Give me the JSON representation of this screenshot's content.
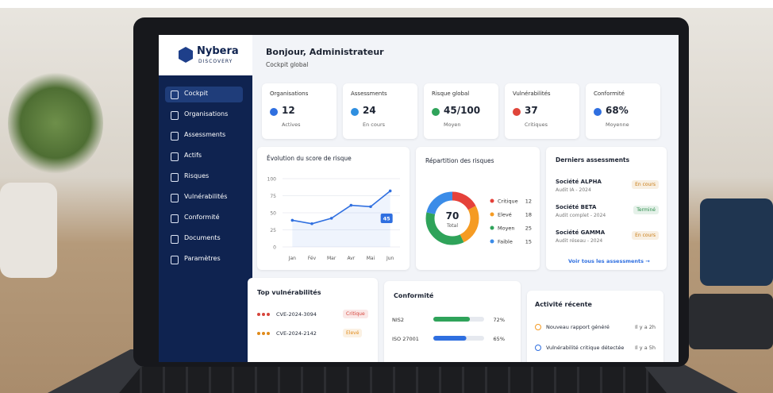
{
  "brand": {
    "name": "Nybera",
    "tagline": "DISCOVERY"
  },
  "nav": [
    "Cockpit",
    "Organisations",
    "Assessments",
    "Actifs",
    "Risques",
    "Vulnérabilités",
    "Conformité",
    "Documents",
    "Paramètres"
  ],
  "header": {
    "title": "Bonjour, Administrateur",
    "subtitle": "Cockpit global"
  },
  "kpis": [
    {
      "label": "Organisations",
      "value": 12,
      "note": "Actives",
      "color": "#2f6fe0"
    },
    {
      "label": "Assessments",
      "value": 24,
      "note": "En cours",
      "color": "#2f8fe0"
    },
    {
      "label": "Risque global",
      "value": "45/100",
      "note": "Moyen",
      "color": "#2fa35a"
    },
    {
      "label": "Vulnérabilités",
      "value": 37,
      "note": "Critiques",
      "color": "#e0453a"
    },
    {
      "label": "Conformité",
      "value": "68%",
      "note": "Moyenne",
      "color": "#2f6fe0"
    }
  ],
  "risk_trend": {
    "type": "line",
    "title": "Évolution du score de risque",
    "categories": [
      "Jan",
      "Fév",
      "Mar",
      "Avr",
      "Mai",
      "Jun"
    ],
    "values": [
      39,
      34,
      42,
      61,
      59,
      82
    ],
    "color": "#2f6fe0",
    "ylim": [
      0,
      100
    ],
    "yticks": [
      0,
      25,
      50,
      75,
      100
    ],
    "grid": true,
    "badge": 45
  },
  "risk_split": {
    "type": "donut",
    "title": "Répartition des risques",
    "total": 70,
    "total_label": "Total",
    "categories": [
      "Critique",
      "Elevé",
      "Moyen",
      "Faible"
    ],
    "values": [
      12,
      18,
      25,
      15
    ],
    "colors": [
      "#e5413a",
      "#f59b23",
      "#2fa35a",
      "#3b8ce8"
    ]
  },
  "assessments": {
    "title": "Derniers assessments",
    "items": [
      {
        "name": "Société ALPHA",
        "detail": "Audit IA - 2024",
        "status": "En cours",
        "color": "#c77a12"
      },
      {
        "name": "Société BETA",
        "detail": "Audit complet - 2024",
        "status": "Terminé",
        "color": "#2a8c4a"
      },
      {
        "name": "Société GAMMA",
        "detail": "Audit réseau - 2024",
        "status": "En cours",
        "color": "#c77a12"
      }
    ],
    "link": "Voir tous les assessments →"
  },
  "top_vulns": {
    "title": "Top vulnérabilités",
    "items": [
      {
        "id": "CVE-2024-3094",
        "severity": "Critique",
        "color": "#d6453b"
      },
      {
        "id": "CVE-2024-2142",
        "severity": "Elevé",
        "color": "#e08a1a"
      }
    ]
  },
  "compliance": {
    "title": "Conformité",
    "xlim": [
      0,
      100
    ],
    "items": [
      {
        "name": "NIS2",
        "value": 72,
        "value_label": "72%",
        "color": "#2fa35a"
      },
      {
        "name": "ISO 27001",
        "value": 65,
        "value_label": "65%",
        "color": "#2f6fe0"
      }
    ]
  },
  "activity": {
    "title": "Activité récente",
    "items": [
      {
        "text": "Nouveau rapport généré",
        "time": "Il y a 2h",
        "color": "#f59b23"
      },
      {
        "text": "Vulnérabilité critique détectée",
        "time": "Il y a 5h",
        "color": "#2f6fe0"
      }
    ]
  }
}
